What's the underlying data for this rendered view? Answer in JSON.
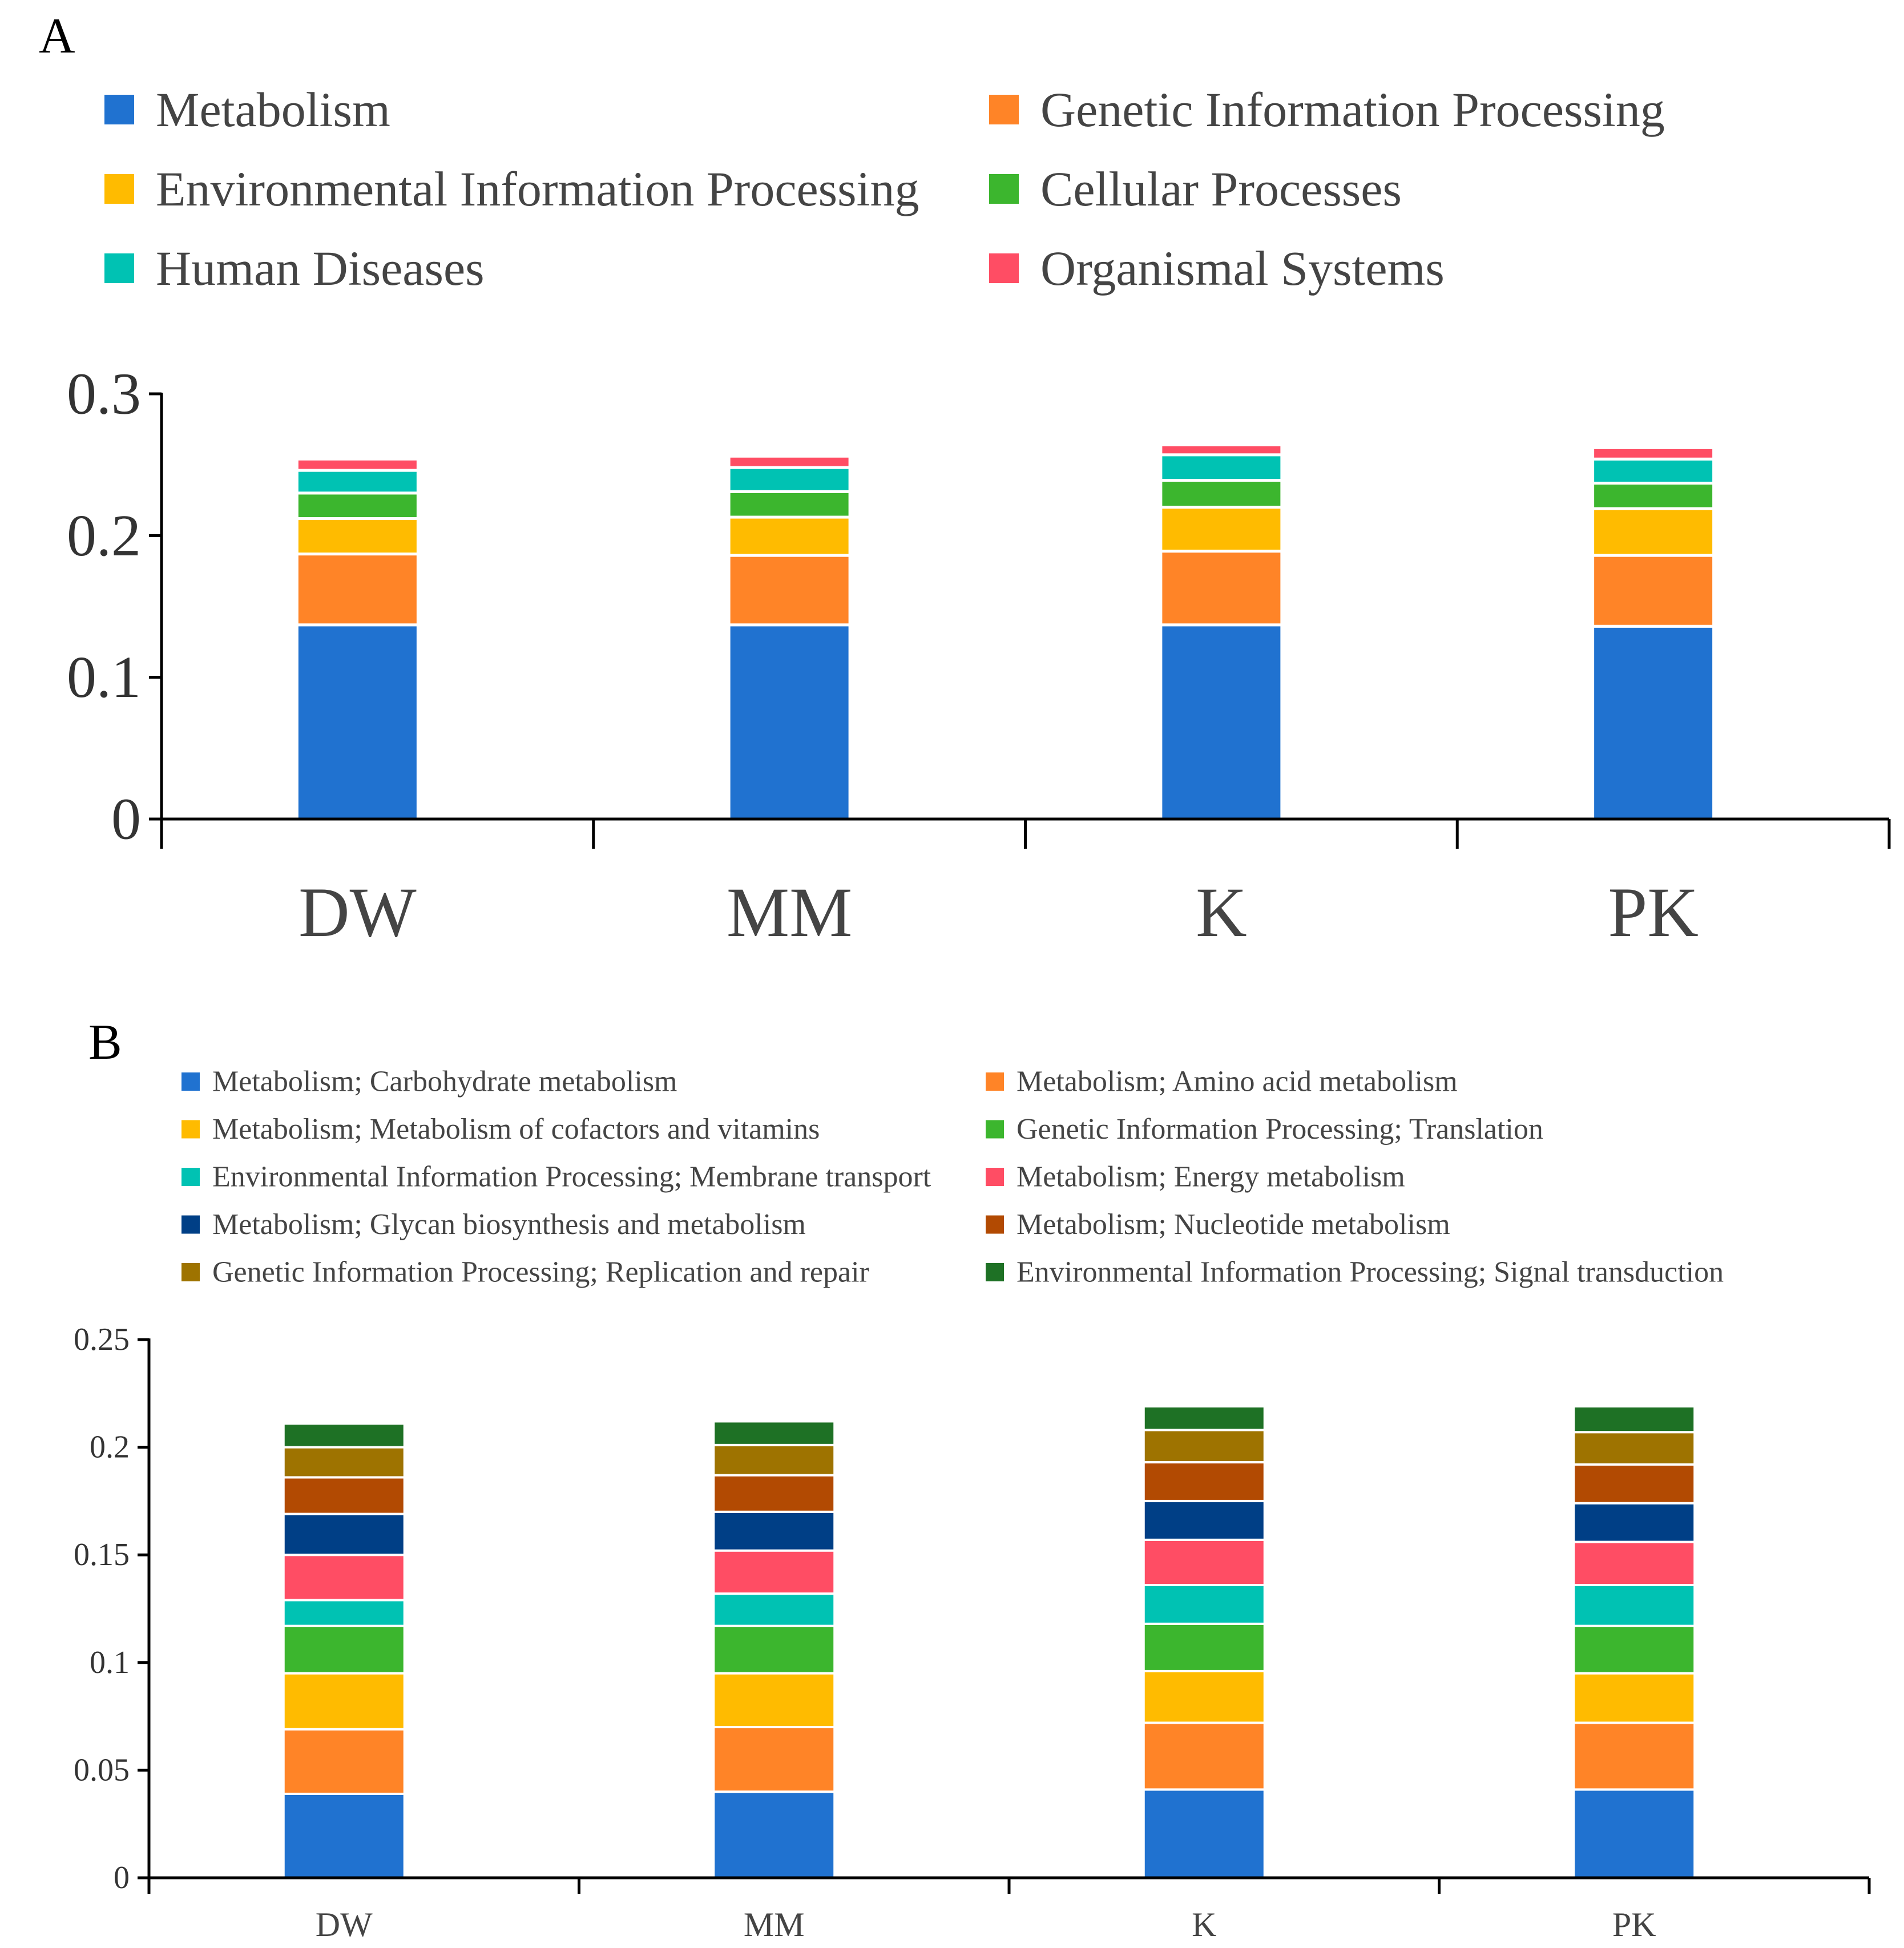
{
  "chart_data": [
    {
      "panel_label": "A",
      "type": "bar",
      "stacked": true,
      "categories": [
        "DW",
        "MM",
        "K",
        "PK"
      ],
      "ylim": [
        0,
        0.3
      ],
      "yticks": [
        "0",
        "0.1",
        "0.2",
        "0.3"
      ],
      "xlabel": "",
      "ylabel": "",
      "legend_position": "top",
      "series": [
        {
          "name": "Metabolism",
          "color": "#2072D0",
          "values": [
            0.137,
            0.137,
            0.137,
            0.136
          ]
        },
        {
          "name": "Genetic Information Processing",
          "color": "#FF8427",
          "values": [
            0.05,
            0.049,
            0.052,
            0.05
          ]
        },
        {
          "name": "Environmental Information Processing",
          "color": "#FFBB00",
          "values": [
            0.025,
            0.027,
            0.031,
            0.033
          ]
        },
        {
          "name": "Cellular Processes",
          "color": "#3CB62E",
          "values": [
            0.018,
            0.018,
            0.019,
            0.018
          ]
        },
        {
          "name": "Human Diseases",
          "color": "#00C2B3",
          "values": [
            0.016,
            0.017,
            0.018,
            0.017
          ]
        },
        {
          "name": "Organismal Systems",
          "color": "#FF4D64",
          "values": [
            0.008,
            0.008,
            0.007,
            0.008
          ]
        }
      ]
    },
    {
      "panel_label": "B",
      "type": "bar",
      "stacked": true,
      "categories": [
        "DW",
        "MM",
        "K",
        "PK"
      ],
      "ylim": [
        0,
        0.25
      ],
      "yticks": [
        "0",
        "0.05",
        "0.1",
        "0.15",
        "0.2",
        "0.25"
      ],
      "xlabel": "",
      "ylabel": "",
      "legend_position": "top",
      "series": [
        {
          "name": "Metabolism; Carbohydrate metabolism",
          "color": "#2072D0",
          "values": [
            0.039,
            0.04,
            0.041,
            0.041
          ]
        },
        {
          "name": "Metabolism; Amino acid metabolism",
          "color": "#FF8427",
          "values": [
            0.03,
            0.03,
            0.031,
            0.031
          ]
        },
        {
          "name": "Metabolism; Metabolism of cofactors and vitamins",
          "color": "#FFBB00",
          "values": [
            0.026,
            0.025,
            0.024,
            0.023
          ]
        },
        {
          "name": "Genetic Information Processing; Translation",
          "color": "#3CB62E",
          "values": [
            0.022,
            0.022,
            0.022,
            0.022
          ]
        },
        {
          "name": "Environmental Information Processing; Membrane transport",
          "color": "#00C2B3",
          "values": [
            0.012,
            0.015,
            0.018,
            0.019
          ]
        },
        {
          "name": "Metabolism; Energy metabolism",
          "color": "#FF4D64",
          "values": [
            0.021,
            0.02,
            0.021,
            0.02
          ]
        },
        {
          "name": "Metabolism; Glycan biosynthesis and metabolism",
          "color": "#003F86",
          "values": [
            0.019,
            0.018,
            0.018,
            0.018
          ]
        },
        {
          "name": "Metabolism; Nucleotide metabolism",
          "color": "#B24A02",
          "values": [
            0.017,
            0.017,
            0.018,
            0.018
          ]
        },
        {
          "name": "Genetic Information Processing; Replication and repair",
          "color": "#9E7300",
          "values": [
            0.014,
            0.014,
            0.015,
            0.015
          ]
        },
        {
          "name": "Environmental Information Processing; Signal transduction",
          "color": "#1E7125",
          "values": [
            0.011,
            0.011,
            0.011,
            0.012
          ]
        }
      ]
    }
  ]
}
